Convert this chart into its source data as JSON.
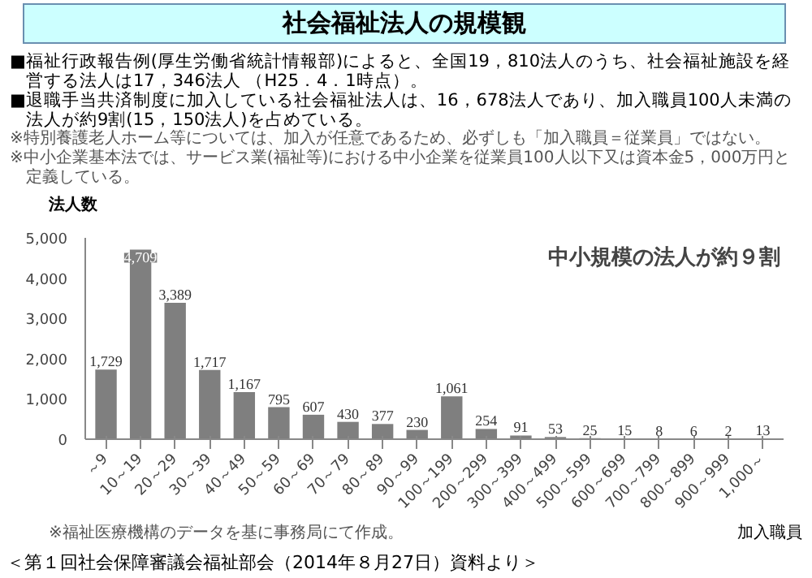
{
  "chart_data": {
    "type": "bar",
    "title": "社会福祉法人の規模観",
    "annotations": [
      "■福祉行政報告例(厚生労働省統計情報部)によると、全国19，810法人のうち、社会福祉施設を経営する法人は17，346法人 （H25．4．1時点）。",
      "■退職手当共済制度に加入している社会福祉法人は、16，678法人であり、加入職員100人未満の法人が約9割(15，150法人)を占めている。",
      "※特別養護老人ホーム等については、加入が任意であるため、必ずしも「加入職員＝従業員」ではない。",
      "※中小企業基本法では、サービス業(福祉等)における中小企業を従業員100人以下又は資本金5，000万円と定義している。",
      "中小規模の法人が約９割",
      "※福祉医療機構のデータを基に事務局にて作成。",
      "＜第１回社会保障審議会福祉部会（2014年８月27日）資料より＞"
    ],
    "xlabel": "加入職員",
    "ylabel": "法人数",
    "categories": [
      "～9",
      "10～19",
      "20～29",
      "30～39",
      "40～49",
      "50～59",
      "60～69",
      "70～79",
      "80～89",
      "90～99",
      "100～199",
      "200～299",
      "300～399",
      "400～499",
      "500～599",
      "600～699",
      "700～799",
      "800～899",
      "900～999",
      "1,000～"
    ],
    "values": [
      1729,
      4709,
      3389,
      1717,
      1167,
      795,
      607,
      430,
      377,
      230,
      1061,
      254,
      91,
      53,
      25,
      15,
      8,
      6,
      2,
      13
    ],
    "value_labels": [
      "1,729",
      "4,709",
      "3,389",
      "1,717",
      "1,167",
      "795",
      "607",
      "430",
      "377",
      "230",
      "1,061",
      "254",
      "91",
      "53",
      "25",
      "15",
      "8",
      "6",
      "2",
      "13"
    ],
    "color": "#7f7f7f",
    "ylim": [
      0,
      5000
    ],
    "yticks": [
      0,
      {
        "value": 1000,
        "label": "1,000"
      },
      {
        "value": 2000,
        "label": "2,000"
      },
      {
        "value": 3000,
        "label": "3,000"
      },
      {
        "value": 4000,
        "label": "4,000"
      },
      {
        "value": 5000,
        "label": "5,000"
      }
    ],
    "grid": false,
    "legend": false
  }
}
